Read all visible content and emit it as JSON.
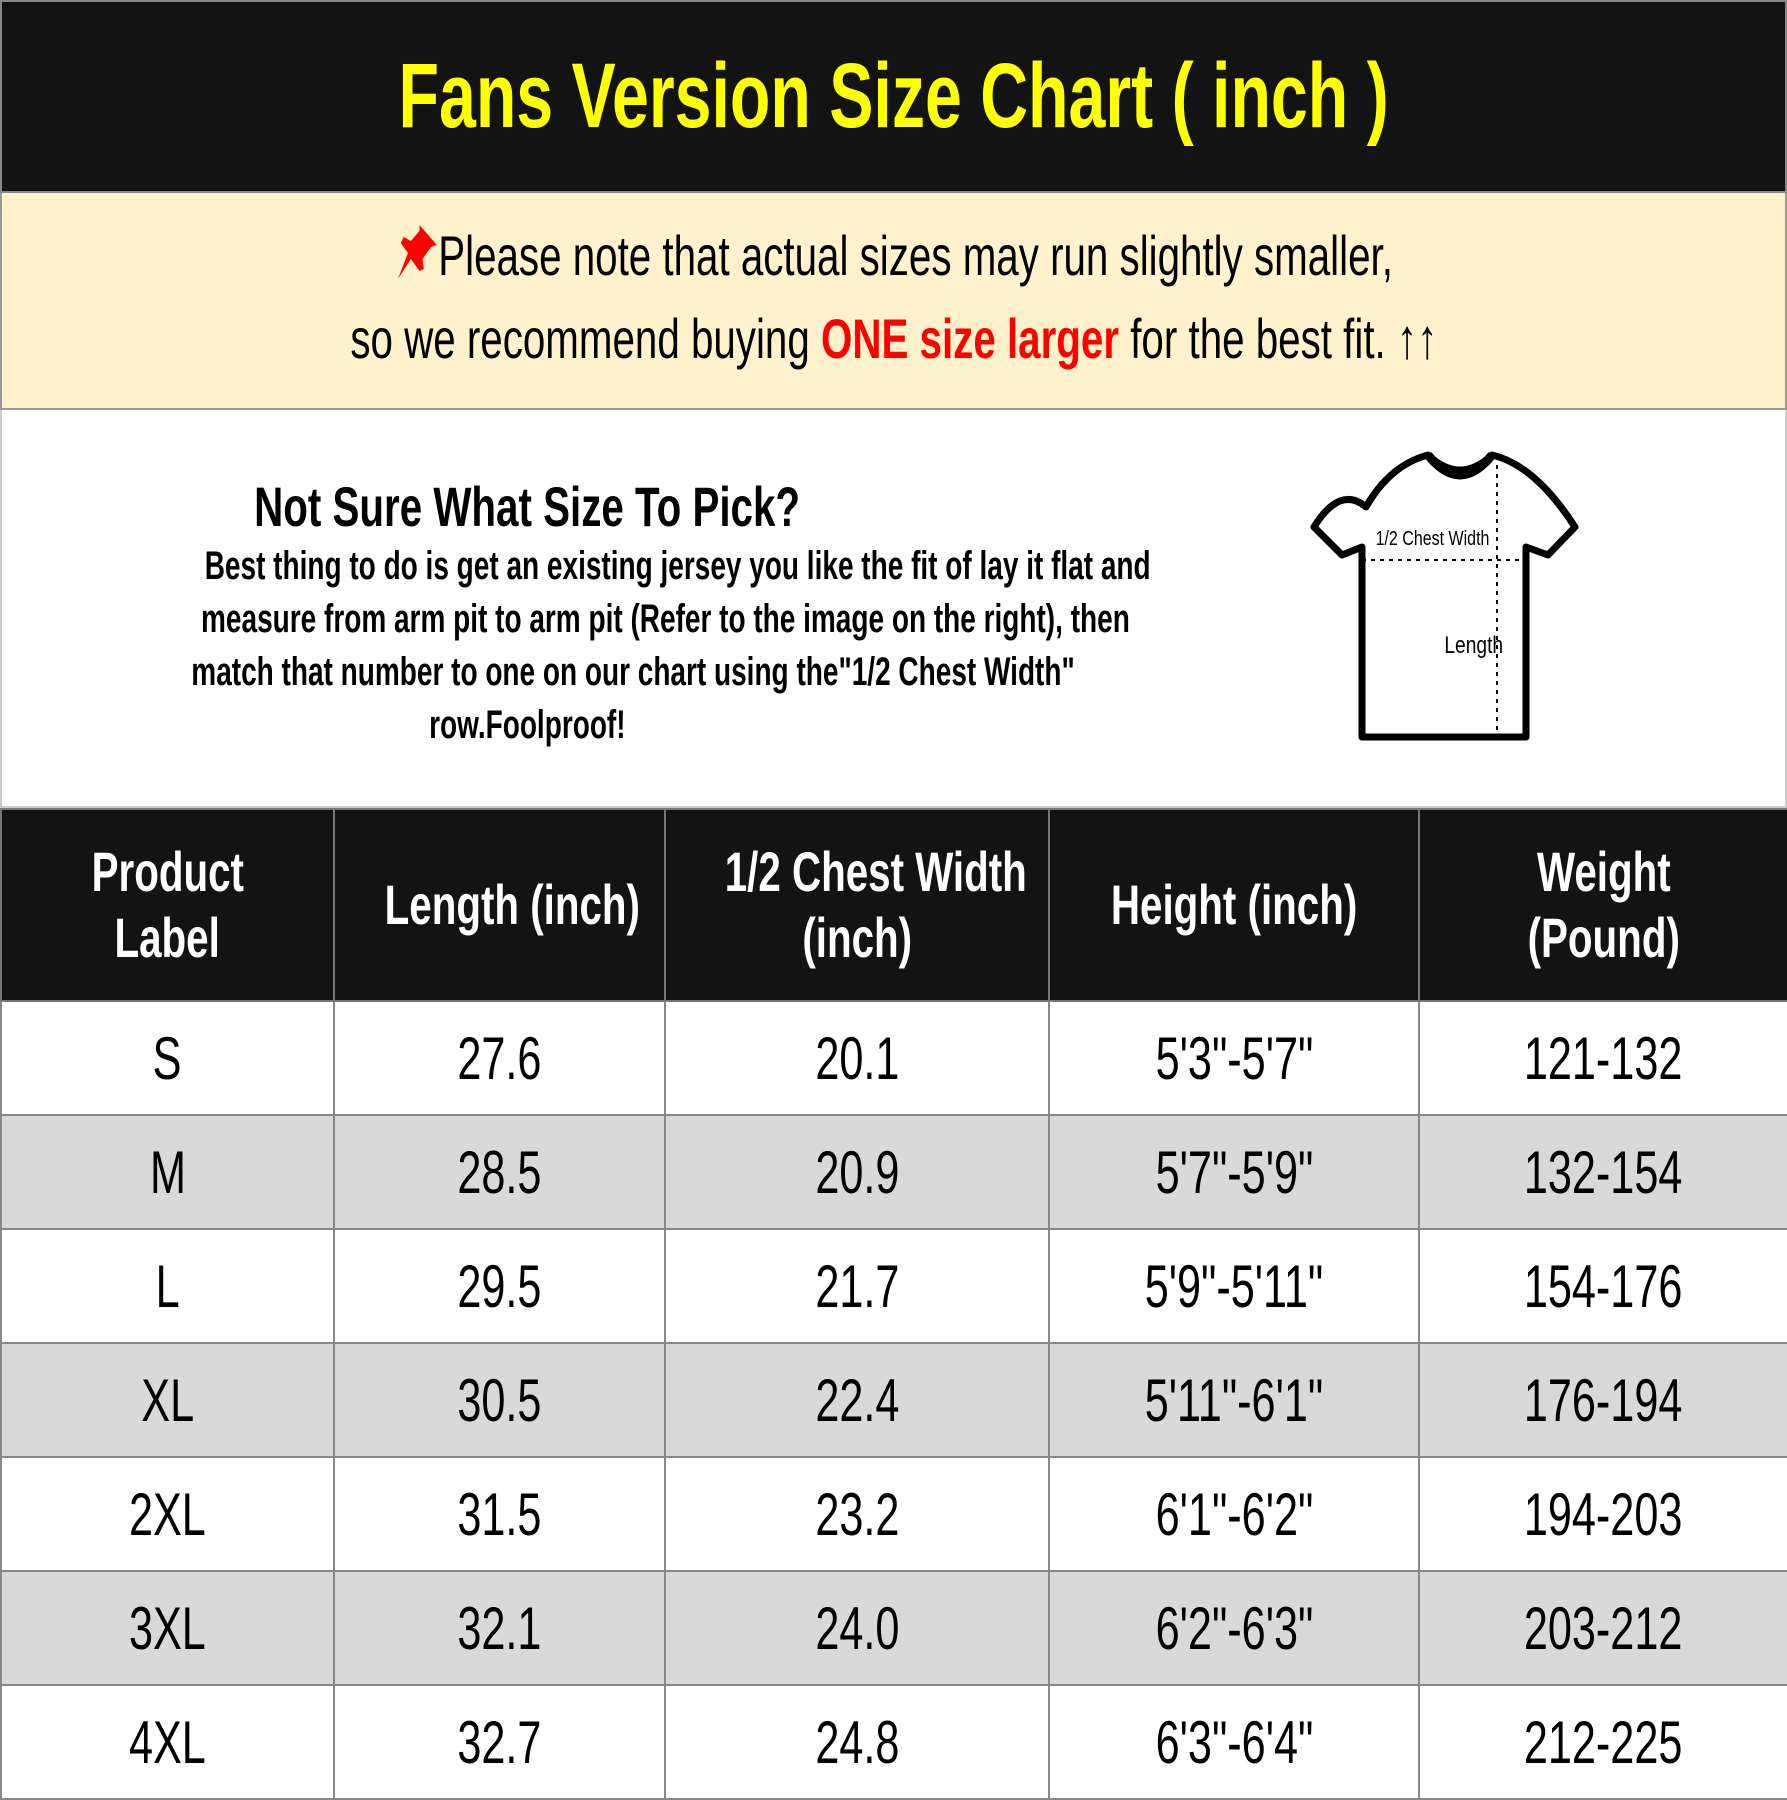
{
  "title": "Fans Version Size Chart ( inch )",
  "note": {
    "pin_icon": "pushpin-icon",
    "line1": "Please note that actual sizes may run slightly smaller,",
    "line2_a": "so we recommend buying ",
    "line2_highlight": "ONE size larger",
    "line2_b": " for the best fit. ",
    "arrows": "↑↑",
    "highlight_color": "#ff0000"
  },
  "info": {
    "heading": "Not Sure What Size To Pick?",
    "lines": [
      "Best thing to do is get an existing jersey you like the fit of lay it flat and",
      "measure from arm pit to arm pit (Refer to the image on the right), then",
      "match that number to one on our chart using the\"1/2 Chest Width\"",
      "row.Foolproof!"
    ],
    "diagram": {
      "chest_label": "1/2 Chest Width",
      "length_label": "Length"
    }
  },
  "table": {
    "headers": [
      [
        "Product",
        "Label"
      ],
      [
        "Length (inch)"
      ],
      [
        "1/2 Chest Width",
        "(inch)"
      ],
      [
        "Height (inch)"
      ],
      [
        "Weight",
        "(Pound)"
      ]
    ],
    "rows": [
      [
        "S",
        "27.6",
        "20.1",
        "5'3\"-5'7\"",
        "121-132"
      ],
      [
        "M",
        "28.5",
        "20.9",
        "5'7\"-5'9\"",
        "132-154"
      ],
      [
        "L",
        "29.5",
        "21.7",
        "5'9\"-5'11\"",
        "154-176"
      ],
      [
        "XL",
        "30.5",
        "22.4",
        "5'11\"-6'1\"",
        "176-194"
      ],
      [
        "2XL",
        "31.5",
        "23.2",
        "6'1\"-6'2\"",
        "194-203"
      ],
      [
        "3XL",
        "32.1",
        "24.0",
        "6'2\"-6'3\"",
        "203-212"
      ],
      [
        "4XL",
        "32.7",
        "24.8",
        "6'3\"-6'4\"",
        "212-225"
      ]
    ]
  }
}
